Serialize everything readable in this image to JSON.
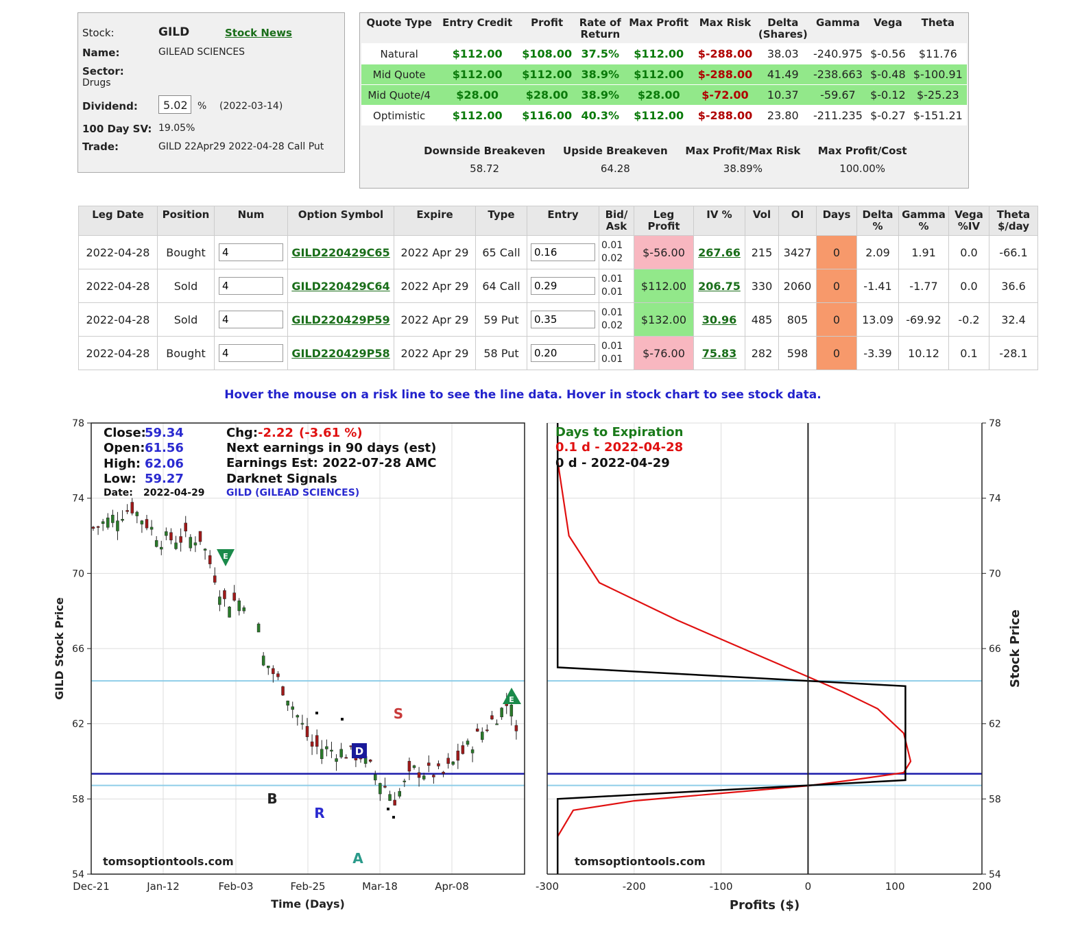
{
  "info": {
    "stock_label": "Stock:",
    "stock": "GILD",
    "news": "Stock News",
    "name_label": "Name:",
    "name": "GILEAD SCIENCES",
    "sector_label": "Sector:",
    "sector": "Drugs",
    "dividend_label": "Dividend:",
    "dividend": "5.02",
    "pct": "%",
    "dividend_date": "(2022-03-14)",
    "sv_label": "100 Day SV:",
    "sv": "19.05%",
    "trade_label": "Trade:",
    "trade": "GILD 22Apr29 2022-04-28 Call Put"
  },
  "quote": {
    "headers": [
      "Quote Type",
      "Entry Credit",
      "Profit",
      "Rate of Return",
      "Max Profit",
      "Max Risk",
      "Delta (Shares)",
      "Gamma",
      "Vega",
      "Theta"
    ],
    "rows": [
      {
        "type": "Natural",
        "entry": "$112.00",
        "profit": "$108.00",
        "ror": "37.5%",
        "maxp": "$112.00",
        "maxr": "$-288.00",
        "delta": "38.03",
        "gamma": "-240.975",
        "vega": "$-0.56",
        "theta": "$11.76"
      },
      {
        "type": "Mid Quote",
        "entry": "$112.00",
        "profit": "$112.00",
        "ror": "38.9%",
        "maxp": "$112.00",
        "maxr": "$-288.00",
        "delta": "41.49",
        "gamma": "-238.663",
        "vega": "$-0.48",
        "theta": "$-100.91"
      },
      {
        "type": "Mid Quote/4",
        "entry": "$28.00",
        "profit": "$28.00",
        "ror": "38.9%",
        "maxp": "$28.00",
        "maxr": "$-72.00",
        "delta": "10.37",
        "gamma": "-59.67",
        "vega": "$-0.12",
        "theta": "$-25.23"
      },
      {
        "type": "Optimistic",
        "entry": "$112.00",
        "profit": "$116.00",
        "ror": "40.3%",
        "maxp": "$112.00",
        "maxr": "$-288.00",
        "delta": "23.80",
        "gamma": "-211.235",
        "vega": "$-0.27",
        "theta": "$-151.21"
      }
    ],
    "breakeven": {
      "labels": [
        "Downside Breakeven",
        "Upside Breakeven",
        "Max Profit/Max Risk",
        "Max Profit/Cost"
      ],
      "values": [
        "58.72",
        "64.28",
        "38.89%",
        "100.00%"
      ]
    }
  },
  "legs": {
    "headers": [
      "Leg Date",
      "Position",
      "Num",
      "Option Symbol",
      "Expire",
      "Type",
      "Entry",
      "Bid/ Ask",
      "Leg Profit",
      "IV %",
      "Vol",
      "OI",
      "Days",
      "Delta %",
      "Gamma %",
      "Vega %IV",
      "Theta $/day"
    ],
    "rows": [
      {
        "date": "2022-04-28",
        "pos": "Bought",
        "num": "4",
        "sym": "GILD220429C65",
        "exp": "2022 Apr 29",
        "type": "65 Call",
        "entry": "0.16",
        "bid": "0.01",
        "ask": "0.02",
        "profit": "$-56.00",
        "iv": "267.66",
        "vol": "215",
        "oi": "3427",
        "days": "0",
        "delta": "2.09",
        "gamma": "1.91",
        "vega": "0.0",
        "theta": "-66.1"
      },
      {
        "date": "2022-04-28",
        "pos": "Sold",
        "num": "4",
        "sym": "GILD220429C64",
        "exp": "2022 Apr 29",
        "type": "64 Call",
        "entry": "0.29",
        "bid": "0.01",
        "ask": "0.01",
        "profit": "$112.00",
        "iv": "206.75",
        "vol": "330",
        "oi": "2060",
        "days": "0",
        "delta": "-1.41",
        "gamma": "-1.77",
        "vega": "0.0",
        "theta": "36.6"
      },
      {
        "date": "2022-04-28",
        "pos": "Sold",
        "num": "4",
        "sym": "GILD220429P59",
        "exp": "2022 Apr 29",
        "type": "59 Put",
        "entry": "0.35",
        "bid": "0.01",
        "ask": "0.02",
        "profit": "$132.00",
        "iv": "30.96",
        "vol": "485",
        "oi": "805",
        "days": "0",
        "delta": "13.09",
        "gamma": "-69.92",
        "vega": "-0.2",
        "theta": "32.4"
      },
      {
        "date": "2022-04-28",
        "pos": "Bought",
        "num": "4",
        "sym": "GILD220429P58",
        "exp": "2022 Apr 29",
        "type": "58 Put",
        "entry": "0.20",
        "bid": "0.01",
        "ask": "0.01",
        "profit": "$-76.00",
        "iv": "75.83",
        "vol": "282",
        "oi": "598",
        "days": "0",
        "delta": "-3.39",
        "gamma": "10.12",
        "vega": "0.1",
        "theta": "-28.1"
      }
    ]
  },
  "hover_text": "Hover the mouse on a risk line to see the line data. Hover in stock chart to see stock data.",
  "stock_chart": {
    "close_label": "Close:",
    "close": "59.34",
    "open_label": "Open:",
    "open": "61.56",
    "high_label": "High:",
    "high": "62.06",
    "low_label": "Low:",
    "low": "59.27",
    "date_label": "Date:",
    "date": "2022-04-29",
    "chg_label": "Chg:",
    "chg": "-2.22",
    "chg_pct": "(-3.61 %)",
    "next_earn": "Next earnings in 90 days  (est)",
    "earn_est": "Earnings Est: 2022-07-28 AMC",
    "darknet": "Darknet Signals",
    "name": "GILD (GILEAD SCIENCES)",
    "watermark": "tomsoptiontools.com",
    "ylabel": "GILD Stock Price",
    "xlabel": "Time (Days)",
    "yticks": [
      "78",
      "74",
      "70",
      "66",
      "62",
      "58",
      "54"
    ],
    "xticks": [
      "Dec-21",
      "Jan-12",
      "Feb-03",
      "Feb-25",
      "Mar-18",
      "Apr-08"
    ],
    "signals": [
      "B",
      "R",
      "D",
      "S",
      "A",
      "E",
      "E"
    ]
  },
  "risk_chart": {
    "legend_title": "Days to Expiration",
    "legend_1": "0.1 d - 2022-04-28",
    "legend_2": "0 d - 2022-04-29",
    "watermark": "tomsoptiontools.com",
    "ylabel": "Stock Price",
    "xlabel": "Profits ($)",
    "xticks": [
      "-300",
      "-200",
      "-100",
      "0",
      "100",
      "200"
    ],
    "yticks": [
      "78",
      "74",
      "70",
      "66",
      "62",
      "58",
      "54"
    ]
  },
  "chart_data": [
    {
      "type": "line",
      "title": "GILD (GILEAD SCIENCES)",
      "xlabel": "Time (Days)",
      "ylabel": "GILD Stock Price",
      "ylim": [
        54,
        78
      ],
      "x": [
        "Dec-21",
        "Jan-12",
        "Feb-03",
        "Feb-25",
        "Mar-18",
        "Apr-08",
        "Apr-29"
      ],
      "series": [
        {
          "values": [
            72.2,
            72.2,
            68.0,
            62.4,
            58.3,
            61.8,
            59.34
          ]
        }
      ],
      "horizontal_lines": [
        64.28,
        59.34,
        58.72
      ]
    },
    {
      "type": "line",
      "title": "Days to Expiration",
      "xlabel": "Profits ($)",
      "ylabel": "Stock Price",
      "xlim": [
        -300,
        200
      ],
      "ylim": [
        54,
        78
      ],
      "series": [
        {
          "name": "0.1 d - 2022-04-28",
          "color": "#e01010",
          "points": [
            [
              -288,
              76
            ],
            [
              -275,
              72
            ],
            [
              -240,
              69.5
            ],
            [
              -150,
              67.5
            ],
            [
              -50,
              65.5
            ],
            [
              0,
              64.5
            ],
            [
              40,
              63.7
            ],
            [
              80,
              62.8
            ],
            [
              110,
              61.5
            ],
            [
              118,
              60
            ],
            [
              110,
              59.4
            ],
            [
              50,
              59
            ],
            [
              0,
              58.7
            ],
            [
              -100,
              58.3
            ],
            [
              -200,
              57.9
            ],
            [
              -270,
              57.4
            ],
            [
              -288,
              56
            ]
          ]
        },
        {
          "name": "0 d - 2022-04-29",
          "color": "#000000",
          "points": [
            [
              -288,
              78
            ],
            [
              -288,
              65
            ],
            [
              112,
              64
            ],
            [
              112,
              59
            ],
            [
              -288,
              58
            ],
            [
              -288,
              54
            ]
          ]
        }
      ]
    }
  ]
}
